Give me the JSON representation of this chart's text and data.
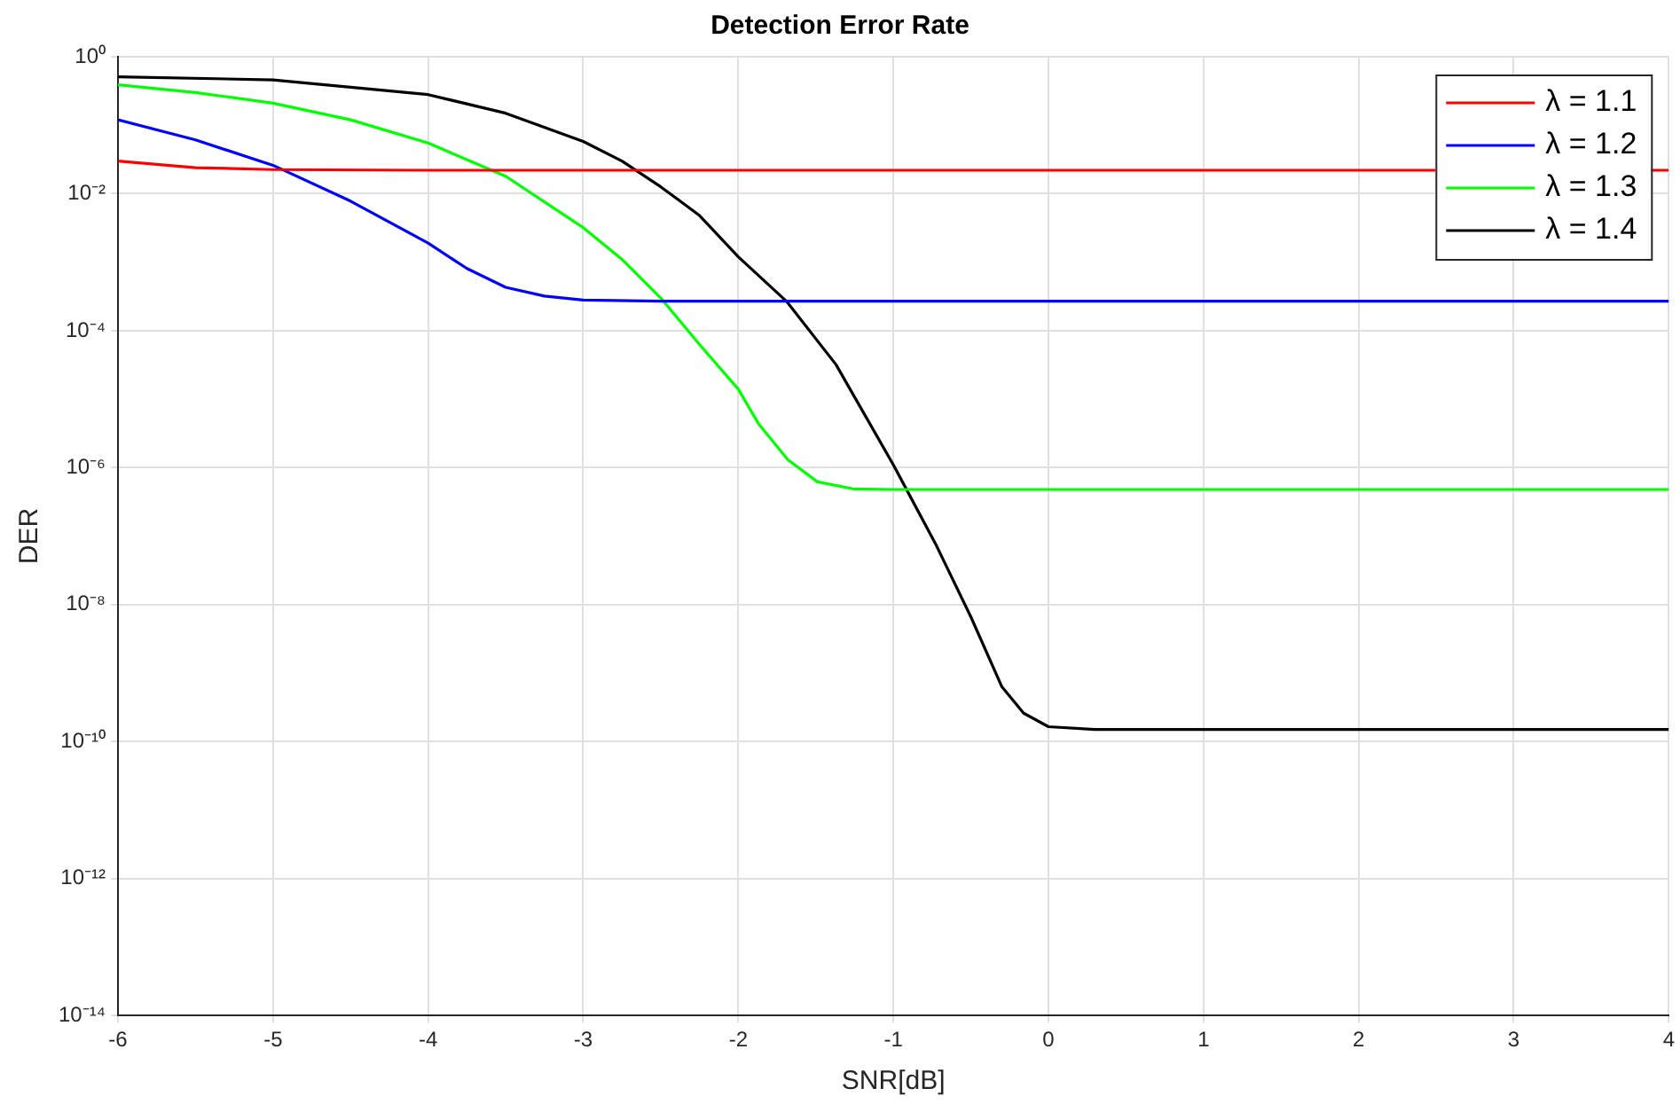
{
  "chart_data": {
    "type": "line",
    "title": "Detection Error Rate",
    "xlabel": "SNR[dB]",
    "ylabel": "DER",
    "log": "y",
    "grid": true,
    "legend": "top right",
    "marker": "none",
    "line_style": "solid",
    "xlim": [
      -6,
      4
    ],
    "xticks": [
      -6,
      -5,
      -4,
      -3,
      -2,
      -1,
      0,
      1,
      2,
      3,
      4
    ],
    "ylim": [
      1e-14,
      1
    ],
    "yticks": [
      {
        "value": 1e-14,
        "label": "10⁻¹⁴"
      },
      {
        "value": 1e-12,
        "label": "10⁻¹²"
      },
      {
        "value": 1e-10,
        "label": "10⁻¹⁰"
      },
      {
        "value": 1e-08,
        "label": "10⁻⁸"
      },
      {
        "value": 1e-06,
        "label": "10⁻⁶"
      },
      {
        "value": 0.0001,
        "label": "10⁻⁴"
      },
      {
        "value": 0.01,
        "label": "10⁻²"
      },
      {
        "value": 1,
        "label": "10⁰"
      }
    ],
    "series": [
      {
        "name": "λ = 1.1",
        "color": "#ff0000",
        "x": [
          -6,
          -5.5,
          -5,
          -4,
          -3,
          4
        ],
        "values": [
          0.03,
          0.024,
          0.0225,
          0.022,
          0.022,
          0.022
        ]
      },
      {
        "name": "λ = 1.2",
        "color": "#0000ff",
        "x": [
          -6,
          -5.5,
          -5,
          -4.5,
          -4,
          -3.75,
          -3.5,
          -3.25,
          -3,
          -2.5,
          4
        ],
        "values": [
          0.12,
          0.061,
          0.026,
          0.0078,
          0.0019,
          0.00081,
          0.00043,
          0.00032,
          0.00028,
          0.00027,
          0.00027
        ]
      },
      {
        "name": "λ = 1.3",
        "color": "#00ff00",
        "x": [
          -6,
          -5.5,
          -5,
          -4.5,
          -4,
          -3.5,
          -3,
          -2.75,
          -2.5,
          -2.25,
          -2,
          -1.87,
          -1.68,
          -1.49,
          -1.26,
          -1,
          4
        ],
        "values": [
          0.39,
          0.3,
          0.21,
          0.12,
          0.055,
          0.018,
          0.0032,
          0.0011,
          0.0003,
          6.3e-05,
          1.4e-05,
          4.4e-06,
          1.3e-06,
          6.2e-07,
          4.9e-07,
          4.8e-07,
          4.8e-07
        ]
      },
      {
        "name": "λ = 1.4",
        "color": "#000000",
        "x": [
          -6,
          -5,
          -4,
          -3.5,
          -3,
          -2.75,
          -2.5,
          -2.25,
          -2,
          -1.69,
          -1.37,
          -1,
          -0.72,
          -0.5,
          -0.3,
          -0.16,
          0,
          0.3,
          4
        ],
        "values": [
          0.51,
          0.46,
          0.28,
          0.15,
          0.058,
          0.03,
          0.0126,
          0.0048,
          0.0012,
          0.00027,
          3.2e-05,
          1.1e-06,
          7.1e-08,
          6.6e-09,
          6.3e-10,
          2.6e-10,
          1.65e-10,
          1.5e-10,
          1.5e-10
        ]
      }
    ]
  }
}
